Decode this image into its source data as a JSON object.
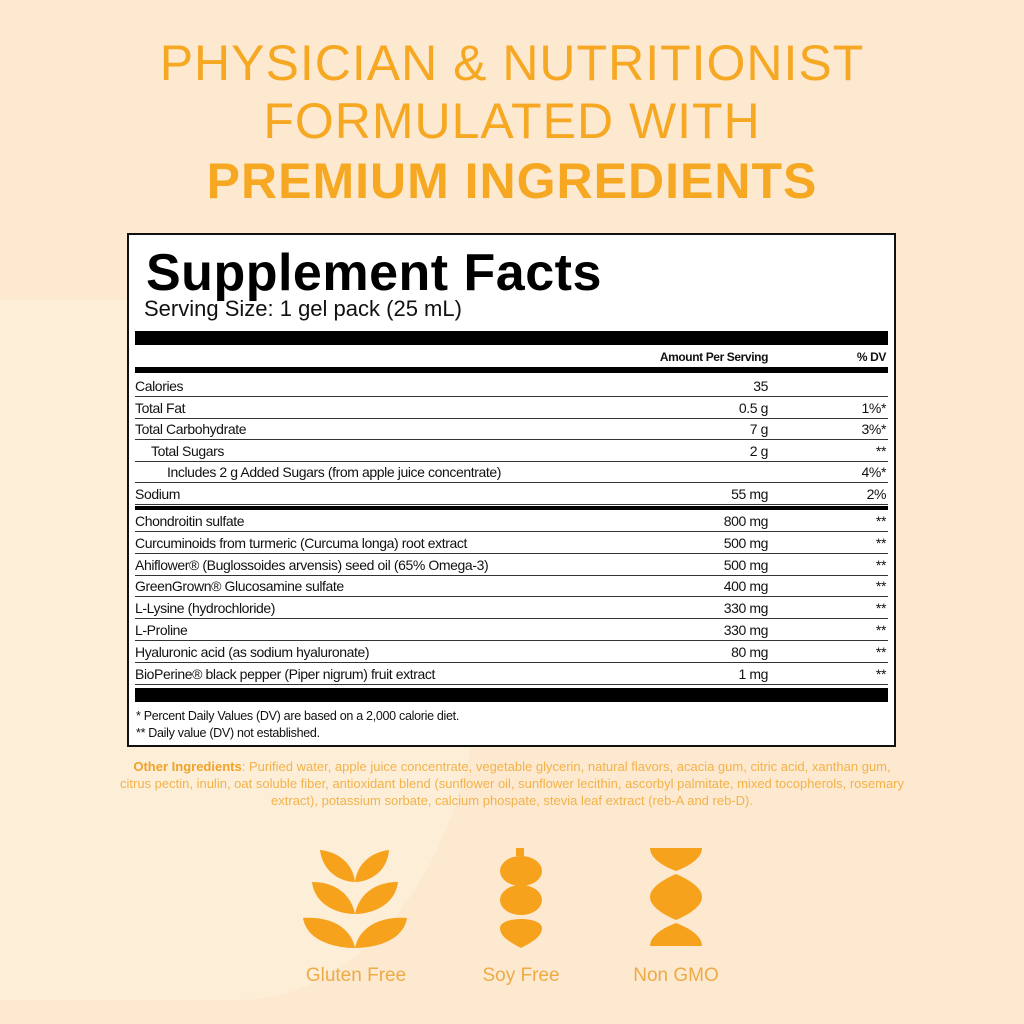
{
  "headline": {
    "line1": "PHYSICIAN & NUTRITIONIST",
    "line2": "FORMULATED WITH",
    "line3": "PREMIUM INGREDIENTS"
  },
  "facts": {
    "title": "Supplement Facts",
    "serving_size": "Serving Size: 1 gel pack (25 mL)",
    "col_amount": "Amount Per Serving",
    "col_dv": "% DV",
    "nutrients": [
      {
        "name": "Calories",
        "amount": "35",
        "dv": ""
      },
      {
        "name": "Total Fat",
        "amount": "0.5 g",
        "dv": "1%*"
      },
      {
        "name": "Total Carbohydrate",
        "amount": "7 g",
        "dv": "3%*"
      },
      {
        "name": "Total Sugars",
        "amount": "2 g",
        "dv": "**"
      },
      {
        "name": "Includes 2 g Added Sugars (from apple juice concentrate)",
        "amount": "",
        "dv": "4%*"
      },
      {
        "name": "Sodium",
        "amount": "55 mg",
        "dv": "2%"
      }
    ],
    "ingredients": [
      {
        "name": "Chondroitin sulfate",
        "amount": "800 mg",
        "dv": "**"
      },
      {
        "name": "Curcuminoids from turmeric (Curcuma longa) root extract",
        "amount": "500 mg",
        "dv": "**"
      },
      {
        "name": "Ahiflower® (Buglossoides arvensis) seed oil (65% Omega-3)",
        "amount": "500 mg",
        "dv": "**"
      },
      {
        "name": "GreenGrown® Glucosamine sulfate",
        "amount": "400 mg",
        "dv": "**"
      },
      {
        "name": "L-Lysine (hydrochloride)",
        "amount": "330 mg",
        "dv": "**"
      },
      {
        "name": "L-Proline",
        "amount": "330 mg",
        "dv": "**"
      },
      {
        "name": "Hyaluronic acid (as sodium hyaluronate)",
        "amount": "80 mg",
        "dv": "**"
      },
      {
        "name": "BioPerine® black pepper (Piper nigrum) fruit extract",
        "amount": "1 mg",
        "dv": "**"
      }
    ],
    "footnote1": "* Percent Daily Values (DV) are based on a 2,000 calorie diet.",
    "footnote2": "** Daily value (DV) not established."
  },
  "other_ingredients": {
    "label": "Other Ingredients",
    "text": ": Purified water, apple juice concentrate, vegetable glycerin, natural flavors, acacia gum, citric acid, xanthan gum, citrus pectin, inulin, oat soluble fiber, antioxidant blend (sunflower oil, sunflower lecithin, ascorbyl palmitate, mixed tocopherols, rosemary extract), potassium sorbate, calcium phospate, stevia leaf extract (reb-A and reb-D)."
  },
  "badges": [
    {
      "label": "Gluten Free",
      "icon": "wheat-icon"
    },
    {
      "label": "Soy Free",
      "icon": "soybean-icon"
    },
    {
      "label": "Non GMO",
      "icon": "dna-icon"
    }
  ],
  "colors": {
    "accent": "#f6a823",
    "background": "#fce9cf"
  }
}
